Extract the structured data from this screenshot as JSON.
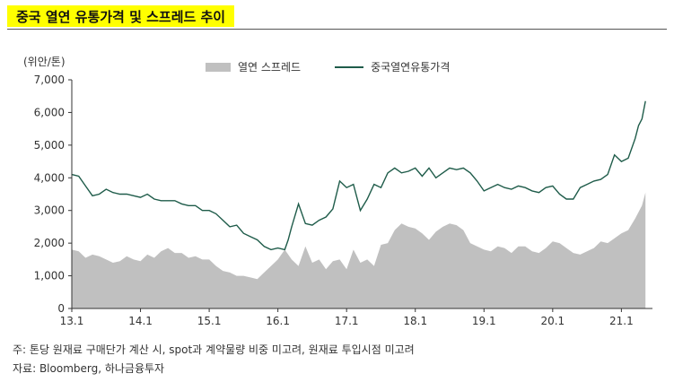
{
  "title": "중국 열연 유통가격 및 스프레드 추이",
  "unit": "(위안/톤)",
  "footnote": "주: 톤당 원재료 구매단가 계산 시, spot과 계약물량 비중 미고려, 원재료 투입시점 미고려",
  "source": "자료: Bloomberg, 하나금융투자",
  "colors": {
    "spread": "#c0c0c0",
    "price": "#1f5c4a"
  },
  "chart_data": {
    "type": "line",
    "title": "중국 열연 유통가격 및 스프레드 추이",
    "ylabel": "(위안/톤)",
    "ylim": [
      0,
      7000
    ],
    "yticks": [
      "0",
      "1,000",
      "2,000",
      "3,000",
      "4,000",
      "5,000",
      "6,000",
      "7,000"
    ],
    "xlim": [
      2013.0,
      2021.4
    ],
    "xticks": [
      {
        "x": 2013.0,
        "label": "13.1"
      },
      {
        "x": 2014.0,
        "label": "14.1"
      },
      {
        "x": 2015.0,
        "label": "15.1"
      },
      {
        "x": 2016.0,
        "label": "16.1"
      },
      {
        "x": 2017.0,
        "label": "17.1"
      },
      {
        "x": 2018.0,
        "label": "18.1"
      },
      {
        "x": 2019.0,
        "label": "19.1"
      },
      {
        "x": 2020.0,
        "label": "20.1"
      },
      {
        "x": 2021.0,
        "label": "21.1"
      }
    ],
    "legend_position": "top-center",
    "series": [
      {
        "name": "열연 스프레드",
        "kind": "area",
        "x": [
          2013.0,
          2013.1,
          2013.2,
          2013.3,
          2013.4,
          2013.5,
          2013.6,
          2013.7,
          2013.8,
          2013.9,
          2014.0,
          2014.1,
          2014.2,
          2014.3,
          2014.4,
          2014.5,
          2014.6,
          2014.7,
          2014.8,
          2014.9,
          2015.0,
          2015.1,
          2015.2,
          2015.3,
          2015.4,
          2015.5,
          2015.6,
          2015.7,
          2015.8,
          2015.9,
          2016.0,
          2016.1,
          2016.2,
          2016.3,
          2016.4,
          2016.5,
          2016.6,
          2016.7,
          2016.8,
          2016.9,
          2017.0,
          2017.1,
          2017.2,
          2017.3,
          2017.4,
          2017.5,
          2017.6,
          2017.7,
          2017.8,
          2017.9,
          2018.0,
          2018.1,
          2018.2,
          2018.3,
          2018.4,
          2018.5,
          2018.6,
          2018.7,
          2018.8,
          2018.9,
          2019.0,
          2019.1,
          2019.2,
          2019.3,
          2019.4,
          2019.5,
          2019.6,
          2019.7,
          2019.8,
          2019.9,
          2020.0,
          2020.1,
          2020.2,
          2020.3,
          2020.4,
          2020.5,
          2020.6,
          2020.7,
          2020.8,
          2020.9,
          2021.0,
          2021.1,
          2021.2,
          2021.3,
          2021.35
        ],
        "y": [
          1800,
          1750,
          1550,
          1650,
          1600,
          1500,
          1400,
          1450,
          1600,
          1500,
          1450,
          1650,
          1550,
          1750,
          1850,
          1700,
          1700,
          1550,
          1600,
          1500,
          1500,
          1300,
          1150,
          1100,
          1000,
          1000,
          950,
          900,
          1100,
          1300,
          1500,
          1800,
          1500,
          1300,
          1900,
          1400,
          1500,
          1200,
          1450,
          1500,
          1200,
          1800,
          1400,
          1500,
          1300,
          1950,
          2000,
          2400,
          2600,
          2500,
          2450,
          2300,
          2100,
          2350,
          2500,
          2600,
          2550,
          2400,
          2000,
          1900,
          1800,
          1750,
          1900,
          1850,
          1700,
          1900,
          1900,
          1750,
          1700,
          1850,
          2050,
          2000,
          1850,
          1700,
          1650,
          1750,
          1850,
          2050,
          2000,
          2150,
          2300,
          2400,
          2750,
          3150,
          3550
        ]
      },
      {
        "name": "중국열연유통가격",
        "kind": "line",
        "x": [
          2013.0,
          2013.1,
          2013.2,
          2013.3,
          2013.4,
          2013.5,
          2013.6,
          2013.7,
          2013.8,
          2013.9,
          2014.0,
          2014.1,
          2014.2,
          2014.3,
          2014.4,
          2014.5,
          2014.6,
          2014.7,
          2014.8,
          2014.9,
          2015.0,
          2015.1,
          2015.2,
          2015.3,
          2015.4,
          2015.5,
          2015.6,
          2015.7,
          2015.8,
          2015.9,
          2016.0,
          2016.1,
          2016.15,
          2016.2,
          2016.3,
          2016.4,
          2016.5,
          2016.6,
          2016.7,
          2016.8,
          2016.9,
          2017.0,
          2017.1,
          2017.2,
          2017.3,
          2017.4,
          2017.5,
          2017.6,
          2017.7,
          2017.8,
          2017.9,
          2018.0,
          2018.1,
          2018.2,
          2018.3,
          2018.4,
          2018.5,
          2018.6,
          2018.7,
          2018.8,
          2018.9,
          2019.0,
          2019.1,
          2019.2,
          2019.3,
          2019.4,
          2019.5,
          2019.6,
          2019.7,
          2019.8,
          2019.9,
          2020.0,
          2020.1,
          2020.2,
          2020.3,
          2020.4,
          2020.5,
          2020.6,
          2020.7,
          2020.8,
          2020.9,
          2021.0,
          2021.1,
          2021.2,
          2021.25,
          2021.3,
          2021.35
        ],
        "y": [
          4100,
          4050,
          3750,
          3450,
          3500,
          3650,
          3550,
          3500,
          3500,
          3450,
          3400,
          3500,
          3350,
          3300,
          3300,
          3300,
          3200,
          3150,
          3150,
          3000,
          3000,
          2900,
          2700,
          2500,
          2550,
          2300,
          2200,
          2100,
          1900,
          1800,
          1850,
          1800,
          2100,
          2500,
          3200,
          2600,
          2550,
          2700,
          2800,
          3050,
          3900,
          3700,
          3800,
          3000,
          3350,
          3800,
          3700,
          4150,
          4300,
          4150,
          4200,
          4300,
          4050,
          4300,
          4000,
          4150,
          4300,
          4250,
          4300,
          4150,
          3900,
          3600,
          3700,
          3800,
          3700,
          3650,
          3750,
          3700,
          3600,
          3550,
          3700,
          3750,
          3500,
          3350,
          3350,
          3700,
          3800,
          3900,
          3950,
          4100,
          4700,
          4500,
          4600,
          5200,
          5600,
          5800,
          6350
        ]
      }
    ]
  }
}
